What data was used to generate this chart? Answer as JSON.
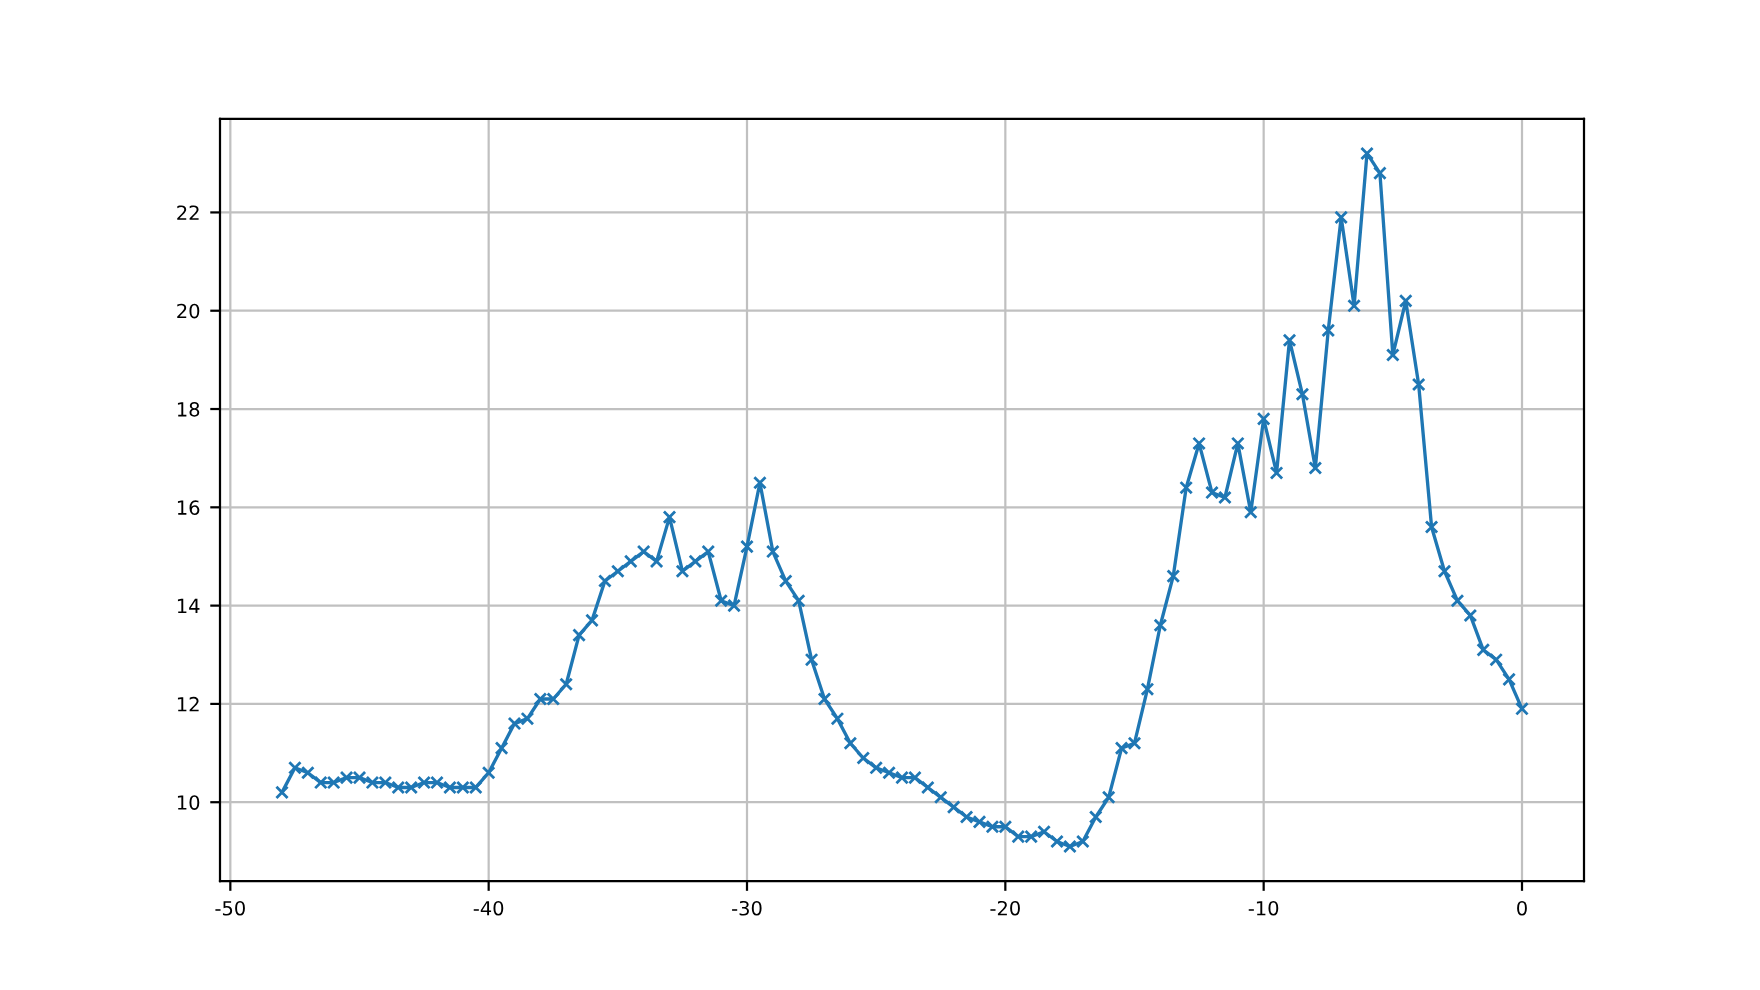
{
  "chart_data": {
    "type": "line",
    "xlim": [
      -50.4,
      2.4
    ],
    "ylim": [
      8.395,
      23.905
    ],
    "xticks": [
      -50,
      -40,
      -30,
      -20,
      -10,
      0
    ],
    "yticks": [
      10,
      12,
      14,
      16,
      18,
      20,
      22
    ],
    "grid": true,
    "marker": "cross",
    "line_style": "solid",
    "series": [
      {
        "color": "#1f77b4",
        "x": [
          -48,
          -47.5,
          -47,
          -46.5,
          -46,
          -45.5,
          -45,
          -44.5,
          -44,
          -43.5,
          -43,
          -42.5,
          -42,
          -41.5,
          -41,
          -40.5,
          -40,
          -39.5,
          -39,
          -38.5,
          -38,
          -37.5,
          -37,
          -36.5,
          -36,
          -35.5,
          -35,
          -34.5,
          -34,
          -33.5,
          -33,
          -32.5,
          -32,
          -31.5,
          -31,
          -30.5,
          -30,
          -29.5,
          -29,
          -28.5,
          -28,
          -27.5,
          -27,
          -26.5,
          -26,
          -25.5,
          -25,
          -24.5,
          -24,
          -23.5,
          -23,
          -22.5,
          -22,
          -21.5,
          -21,
          -20.5,
          -20,
          -19.5,
          -19,
          -18.5,
          -18,
          -17.5,
          -17,
          -16.5,
          -16,
          -15.5,
          -15,
          -14.5,
          -14,
          -13.5,
          -13,
          -12.5,
          -12,
          -11.5,
          -11,
          -10.5,
          -10,
          -9.5,
          -9,
          -8.5,
          -8,
          -7.5,
          -7,
          -6.5,
          -6,
          -5.5,
          -5,
          -4.5,
          -4,
          -3.5,
          -3,
          -2.5,
          -2,
          -1.5,
          -1,
          -0.5,
          0
        ],
        "values": [
          10.2,
          10.7,
          10.6,
          10.4,
          10.4,
          10.5,
          10.5,
          10.4,
          10.4,
          10.3,
          10.3,
          10.4,
          10.4,
          10.3,
          10.3,
          10.3,
          10.6,
          11.1,
          11.6,
          11.7,
          12.1,
          12.1,
          12.4,
          13.4,
          13.7,
          14.5,
          14.7,
          14.9,
          15.1,
          14.9,
          15.8,
          14.7,
          14.9,
          15.1,
          14.1,
          14.0,
          15.2,
          16.5,
          15.1,
          14.5,
          14.1,
          12.9,
          12.1,
          11.7,
          11.2,
          10.9,
          10.7,
          10.6,
          10.5,
          10.5,
          10.3,
          10.1,
          9.9,
          9.7,
          9.6,
          9.5,
          9.5,
          9.3,
          9.3,
          9.4,
          9.2,
          9.1,
          9.2,
          9.7,
          10.1,
          11.1,
          11.2,
          12.3,
          13.6,
          14.6,
          16.4,
          17.3,
          16.3,
          16.2,
          17.3,
          15.9,
          17.8,
          16.7,
          19.4,
          18.3,
          16.8,
          19.6,
          21.9,
          20.1,
          23.2,
          22.8,
          19.1,
          20.2,
          18.5,
          15.6,
          14.7,
          14.1,
          13.8,
          13.1,
          12.9,
          12.5,
          11.9
        ]
      }
    ]
  }
}
